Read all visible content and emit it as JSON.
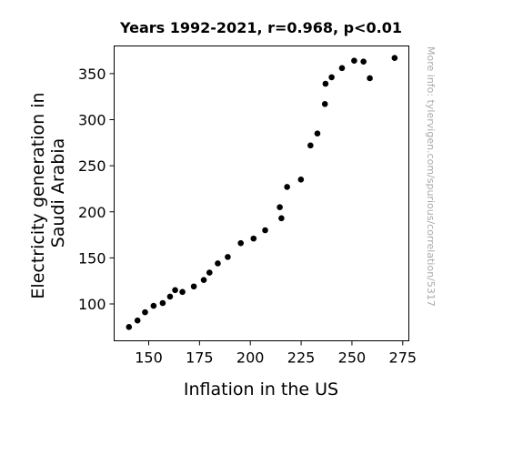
{
  "colors": {
    "point": "#000000",
    "watermark": "#aaaaaa"
  },
  "chart_data": {
    "type": "scatter",
    "title": "Years 1992-2021, r=0.968, p<0.01",
    "xlabel": "Inflation in the US",
    "ylabel_lines": [
      "Electricity generation in",
      "Saudi Arabia"
    ],
    "watermark": "More info: tylervigen.com/spurious/correlation/5317",
    "xlim": [
      133,
      278
    ],
    "ylim": [
      60,
      380
    ],
    "xticks": [
      150,
      175,
      200,
      225,
      250,
      275
    ],
    "yticks": [
      100,
      150,
      200,
      250,
      300,
      350
    ],
    "grid": false,
    "points": [
      {
        "x": 140.3,
        "y": 75
      },
      {
        "x": 144.5,
        "y": 82
      },
      {
        "x": 148.2,
        "y": 91
      },
      {
        "x": 152.4,
        "y": 98
      },
      {
        "x": 156.9,
        "y": 101
      },
      {
        "x": 160.5,
        "y": 108
      },
      {
        "x": 163.0,
        "y": 115
      },
      {
        "x": 166.6,
        "y": 113
      },
      {
        "x": 172.2,
        "y": 119
      },
      {
        "x": 177.1,
        "y": 126
      },
      {
        "x": 179.9,
        "y": 134
      },
      {
        "x": 184.0,
        "y": 144
      },
      {
        "x": 188.9,
        "y": 151
      },
      {
        "x": 195.3,
        "y": 166
      },
      {
        "x": 201.6,
        "y": 171
      },
      {
        "x": 207.3,
        "y": 180
      },
      {
        "x": 215.3,
        "y": 193
      },
      {
        "x": 214.5,
        "y": 205
      },
      {
        "x": 218.1,
        "y": 227
      },
      {
        "x": 224.9,
        "y": 235
      },
      {
        "x": 229.6,
        "y": 272
      },
      {
        "x": 233.0,
        "y": 285
      },
      {
        "x": 236.7,
        "y": 317
      },
      {
        "x": 237.0,
        "y": 339
      },
      {
        "x": 240.0,
        "y": 346
      },
      {
        "x": 245.1,
        "y": 356
      },
      {
        "x": 251.1,
        "y": 364
      },
      {
        "x": 255.7,
        "y": 363
      },
      {
        "x": 258.8,
        "y": 345
      },
      {
        "x": 271.0,
        "y": 367
      }
    ]
  }
}
